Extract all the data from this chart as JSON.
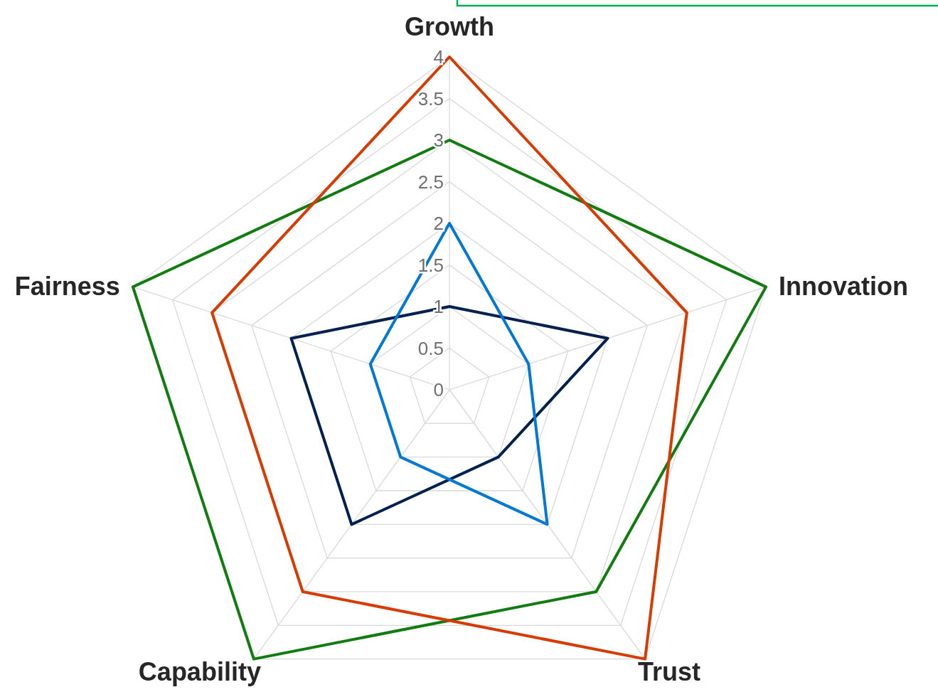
{
  "chart_data": {
    "type": "radar",
    "categories": [
      "Growth",
      "Innovation",
      "Trust",
      "Capability",
      "Fairness"
    ],
    "series": [
      {
        "color": "#107c10",
        "values": [
          3,
          4,
          3,
          4,
          4
        ]
      },
      {
        "color": "#d83b01",
        "values": [
          4,
          3,
          4,
          3,
          3
        ]
      },
      {
        "color": "#002050",
        "values": [
          1,
          2,
          1,
          2,
          2
        ]
      },
      {
        "color": "#0078d4",
        "values": [
          2,
          1,
          2,
          1,
          1
        ]
      }
    ],
    "ylim": [
      0,
      4
    ],
    "yticks": [
      0,
      0.5,
      1,
      1.5,
      2,
      2.5,
      3,
      3.5,
      4
    ],
    "grid": true,
    "marker": "none",
    "line_style": "solid"
  }
}
